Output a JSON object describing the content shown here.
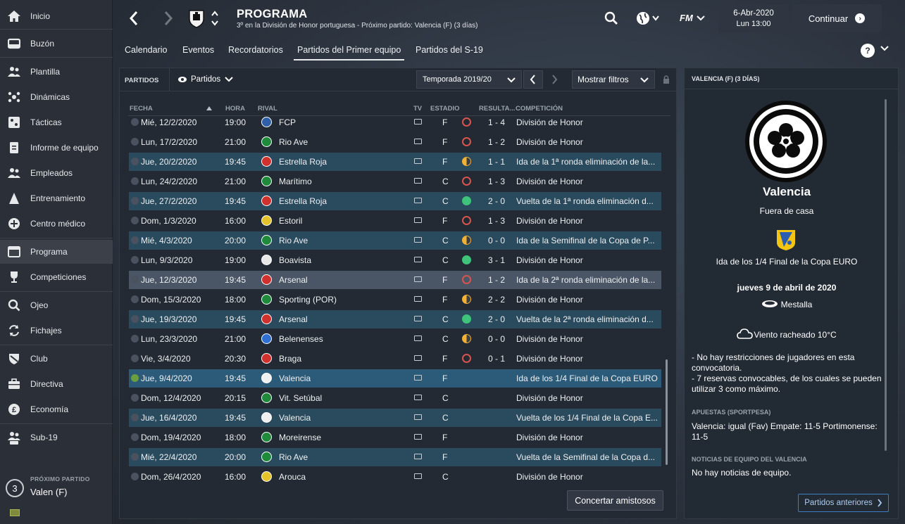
{
  "sidebar": {
    "items": [
      {
        "label": "Inicio",
        "icon": "home-icon"
      },
      {
        "label": "Buzón",
        "icon": "inbox-icon"
      },
      {
        "label": "Plantilla",
        "icon": "squad-icon"
      },
      {
        "label": "Dinámicas",
        "icon": "dynamics-icon"
      },
      {
        "label": "Tácticas",
        "icon": "tactics-icon"
      },
      {
        "label": "Informe de equipo",
        "icon": "report-icon"
      },
      {
        "label": "Empleados",
        "icon": "staff-icon"
      },
      {
        "label": "Entrenamiento",
        "icon": "training-icon"
      },
      {
        "label": "Centro médico",
        "icon": "medical-icon"
      },
      {
        "label": "Programa",
        "icon": "schedule-icon"
      },
      {
        "label": "Competiciones",
        "icon": "trophy-icon"
      },
      {
        "label": "Ojeo",
        "icon": "scouting-icon"
      },
      {
        "label": "Fichajes",
        "icon": "transfers-icon"
      },
      {
        "label": "Club",
        "icon": "club-icon"
      },
      {
        "label": "Directiva",
        "icon": "board-icon"
      },
      {
        "label": "Economía",
        "icon": "finance-icon"
      },
      {
        "label": "Sub-19",
        "icon": "u19-icon"
      }
    ],
    "next_match": {
      "label": "PRÓXIMO PARTIDO",
      "days": "3",
      "text": "Valen (F)"
    }
  },
  "header": {
    "title": "PROGRAMA",
    "subtitle": "3º en la División de Honor portuguesa - Próximo partido: Valencia (F)  (3 días)",
    "date": "6-Abr-2020",
    "time": "Lun 13:00",
    "continue_label": "Continuar",
    "fm_label": "FM"
  },
  "tabs": [
    "Calendario",
    "Eventos",
    "Recordatorios",
    "Partidos del Primer equipo",
    "Partidos del S-19"
  ],
  "panel": {
    "title": "PARTIDOS",
    "view_label": "Partidos",
    "season": "Temporada 2019/20",
    "filters_label": "Mostrar filtros",
    "arrange_label": "Concertar amistosos"
  },
  "table": {
    "headers": {
      "date": "FECHA",
      "time": "HORA",
      "opponent": "RIVAL",
      "tv": "TV",
      "venue": "ESTADIO",
      "result": "RESULTA...",
      "competition": "COMPETICIÓN"
    },
    "rows": [
      {
        "date": "Mié, 12/2/2020",
        "time": "19:00",
        "opponent": "FCP",
        "venue": "F",
        "result_type": "loss",
        "score": "1 - 4",
        "competition": "División de Honor",
        "style": "",
        "crest_color": "#2f5fa8"
      },
      {
        "date": "Lun, 17/2/2020",
        "time": "21:00",
        "opponent": "Rio Ave",
        "venue": "F",
        "result_type": "loss",
        "score": "1 - 2",
        "competition": "División de Honor",
        "style": "",
        "crest_color": "#1f8a3a"
      },
      {
        "date": "Jue, 20/2/2020",
        "time": "19:45",
        "opponent": "Estrella Roja",
        "venue": "F",
        "result_type": "draw",
        "score": "1 - 1",
        "competition": "Ida de la 1ª ronda eliminación de la...",
        "style": "cup",
        "crest_color": "#d0312d"
      },
      {
        "date": "Lun, 24/2/2020",
        "time": "21:00",
        "opponent": "Marítimo",
        "venue": "C",
        "result_type": "loss",
        "score": "1 - 3",
        "competition": "División de Honor",
        "style": "",
        "crest_color": "#1f8a3a"
      },
      {
        "date": "Jue, 27/2/2020",
        "time": "19:45",
        "opponent": "Estrella Roja",
        "venue": "C",
        "result_type": "win",
        "score": "2 - 0",
        "competition": "Vuelta de la 1ª ronda eliminación d...",
        "style": "cup",
        "crest_color": "#d0312d"
      },
      {
        "date": "Dom, 1/3/2020",
        "time": "16:00",
        "opponent": "Estoril",
        "venue": "F",
        "result_type": "loss",
        "score": "1 - 3",
        "competition": "División de Honor",
        "style": "",
        "crest_color": "#e4c32a"
      },
      {
        "date": "Mié, 4/3/2020",
        "time": "20:00",
        "opponent": "Rio Ave",
        "venue": "C",
        "result_type": "draw",
        "score": "0 - 0",
        "competition": "Ida de la Semifinal de la Copa de P...",
        "style": "cup",
        "crest_color": "#1f8a3a"
      },
      {
        "date": "Lun, 9/3/2020",
        "time": "19:00",
        "opponent": "Boavista",
        "venue": "C",
        "result_type": "win",
        "score": "3 - 1",
        "competition": "División de Honor",
        "style": "",
        "crest_color": "#e8e8e8"
      },
      {
        "date": "Jue, 12/3/2020",
        "time": "19:45",
        "opponent": "Arsenal",
        "venue": "F",
        "result_type": "loss",
        "score": "1 - 2",
        "competition": "Ida de la 2ª ronda eliminación de la...",
        "style": "sel",
        "crest_color": "#d0312d"
      },
      {
        "date": "Dom, 15/3/2020",
        "time": "18:00",
        "opponent": "Sporting (POR)",
        "venue": "F",
        "result_type": "draw",
        "score": "2 - 2",
        "competition": "División de Honor",
        "style": "",
        "crest_color": "#1f8a3a"
      },
      {
        "date": "Jue, 19/3/2020",
        "time": "19:45",
        "opponent": "Arsenal",
        "venue": "C",
        "result_type": "win",
        "score": "2 - 0",
        "competition": "Vuelta de la 2ª ronda eliminación d...",
        "style": "cup",
        "crest_color": "#d0312d"
      },
      {
        "date": "Lun, 23/3/2020",
        "time": "21:00",
        "opponent": "Belenenses",
        "venue": "C",
        "result_type": "draw",
        "score": "0 - 0",
        "competition": "División de Honor",
        "style": "",
        "crest_color": "#2f6fd0"
      },
      {
        "date": "Vie, 3/4/2020",
        "time": "20:30",
        "opponent": "Braga",
        "venue": "F",
        "result_type": "loss",
        "score": "0 - 1",
        "competition": "División de Honor",
        "style": "",
        "crest_color": "#d0312d"
      },
      {
        "date": "Jue, 9/4/2020",
        "time": "19:45",
        "opponent": "Valencia",
        "venue": "F",
        "result_type": "",
        "score": "",
        "competition": "Ida de los 1/4 Final de la Copa EURO",
        "style": "cur",
        "crest_color": "#f0f0f0"
      },
      {
        "date": "Dom, 12/4/2020",
        "time": "20:15",
        "opponent": "Vit. Setúbal",
        "venue": "C",
        "result_type": "",
        "score": "",
        "competition": "División de Honor",
        "style": "",
        "crest_color": "#1f8a3a"
      },
      {
        "date": "Jue, 16/4/2020",
        "time": "19:45",
        "opponent": "Valencia",
        "venue": "C",
        "result_type": "",
        "score": "",
        "competition": "Vuelta de los 1/4 Final de la Copa E...",
        "style": "cup",
        "crest_color": "#f0f0f0"
      },
      {
        "date": "Dom, 19/4/2020",
        "time": "18:00",
        "opponent": "Moreirense",
        "venue": "F",
        "result_type": "",
        "score": "",
        "competition": "División de Honor",
        "style": "",
        "crest_color": "#1f8a3a"
      },
      {
        "date": "Mié, 22/4/2020",
        "time": "20:00",
        "opponent": "Rio Ave",
        "venue": "F",
        "result_type": "",
        "score": "",
        "competition": "Vuelta de la Semifinal de la Copa d...",
        "style": "cup",
        "crest_color": "#1f8a3a"
      },
      {
        "date": "Dom, 26/4/2020",
        "time": "16:00",
        "opponent": "Arouca",
        "venue": "C",
        "result_type": "",
        "score": "",
        "competition": "División de Honor",
        "style": "",
        "crest_color": "#e4c32a"
      }
    ]
  },
  "side_panel": {
    "header": "VALENCIA (F)  (3 DÍAS)",
    "opponent": "Valencia",
    "venue_type": "Fuera de casa",
    "competition": "Ida de los 1/4 Final de la Copa EURO",
    "date": "jueves 9 de abril de 2020",
    "stadium": "Mestalla",
    "weather": "Viento racheado 10°C",
    "notes": "- No hay restricciones de jugadores en esta convocatoria.\n- 7 reservas convocables, de los cuales se pueden utilizar 3 como máximo.",
    "bets_title": "APUESTAS (SPORTPESA)",
    "bets_text": "Valencia: igual (Fav) Empate: 11-5 Portimonense: 11-5",
    "news_title": "NOTICIAS DE EQUIPO DEL VALENCIA",
    "news_text": "No hay noticias de equipo.",
    "prev_button": "Partidos anteriores"
  },
  "colors": {
    "win": "#3fc27a",
    "draw": "#f2b233",
    "loss": "#d9534f",
    "cup_row": "#2a4a5d",
    "accent": "#3d7fc0"
  }
}
